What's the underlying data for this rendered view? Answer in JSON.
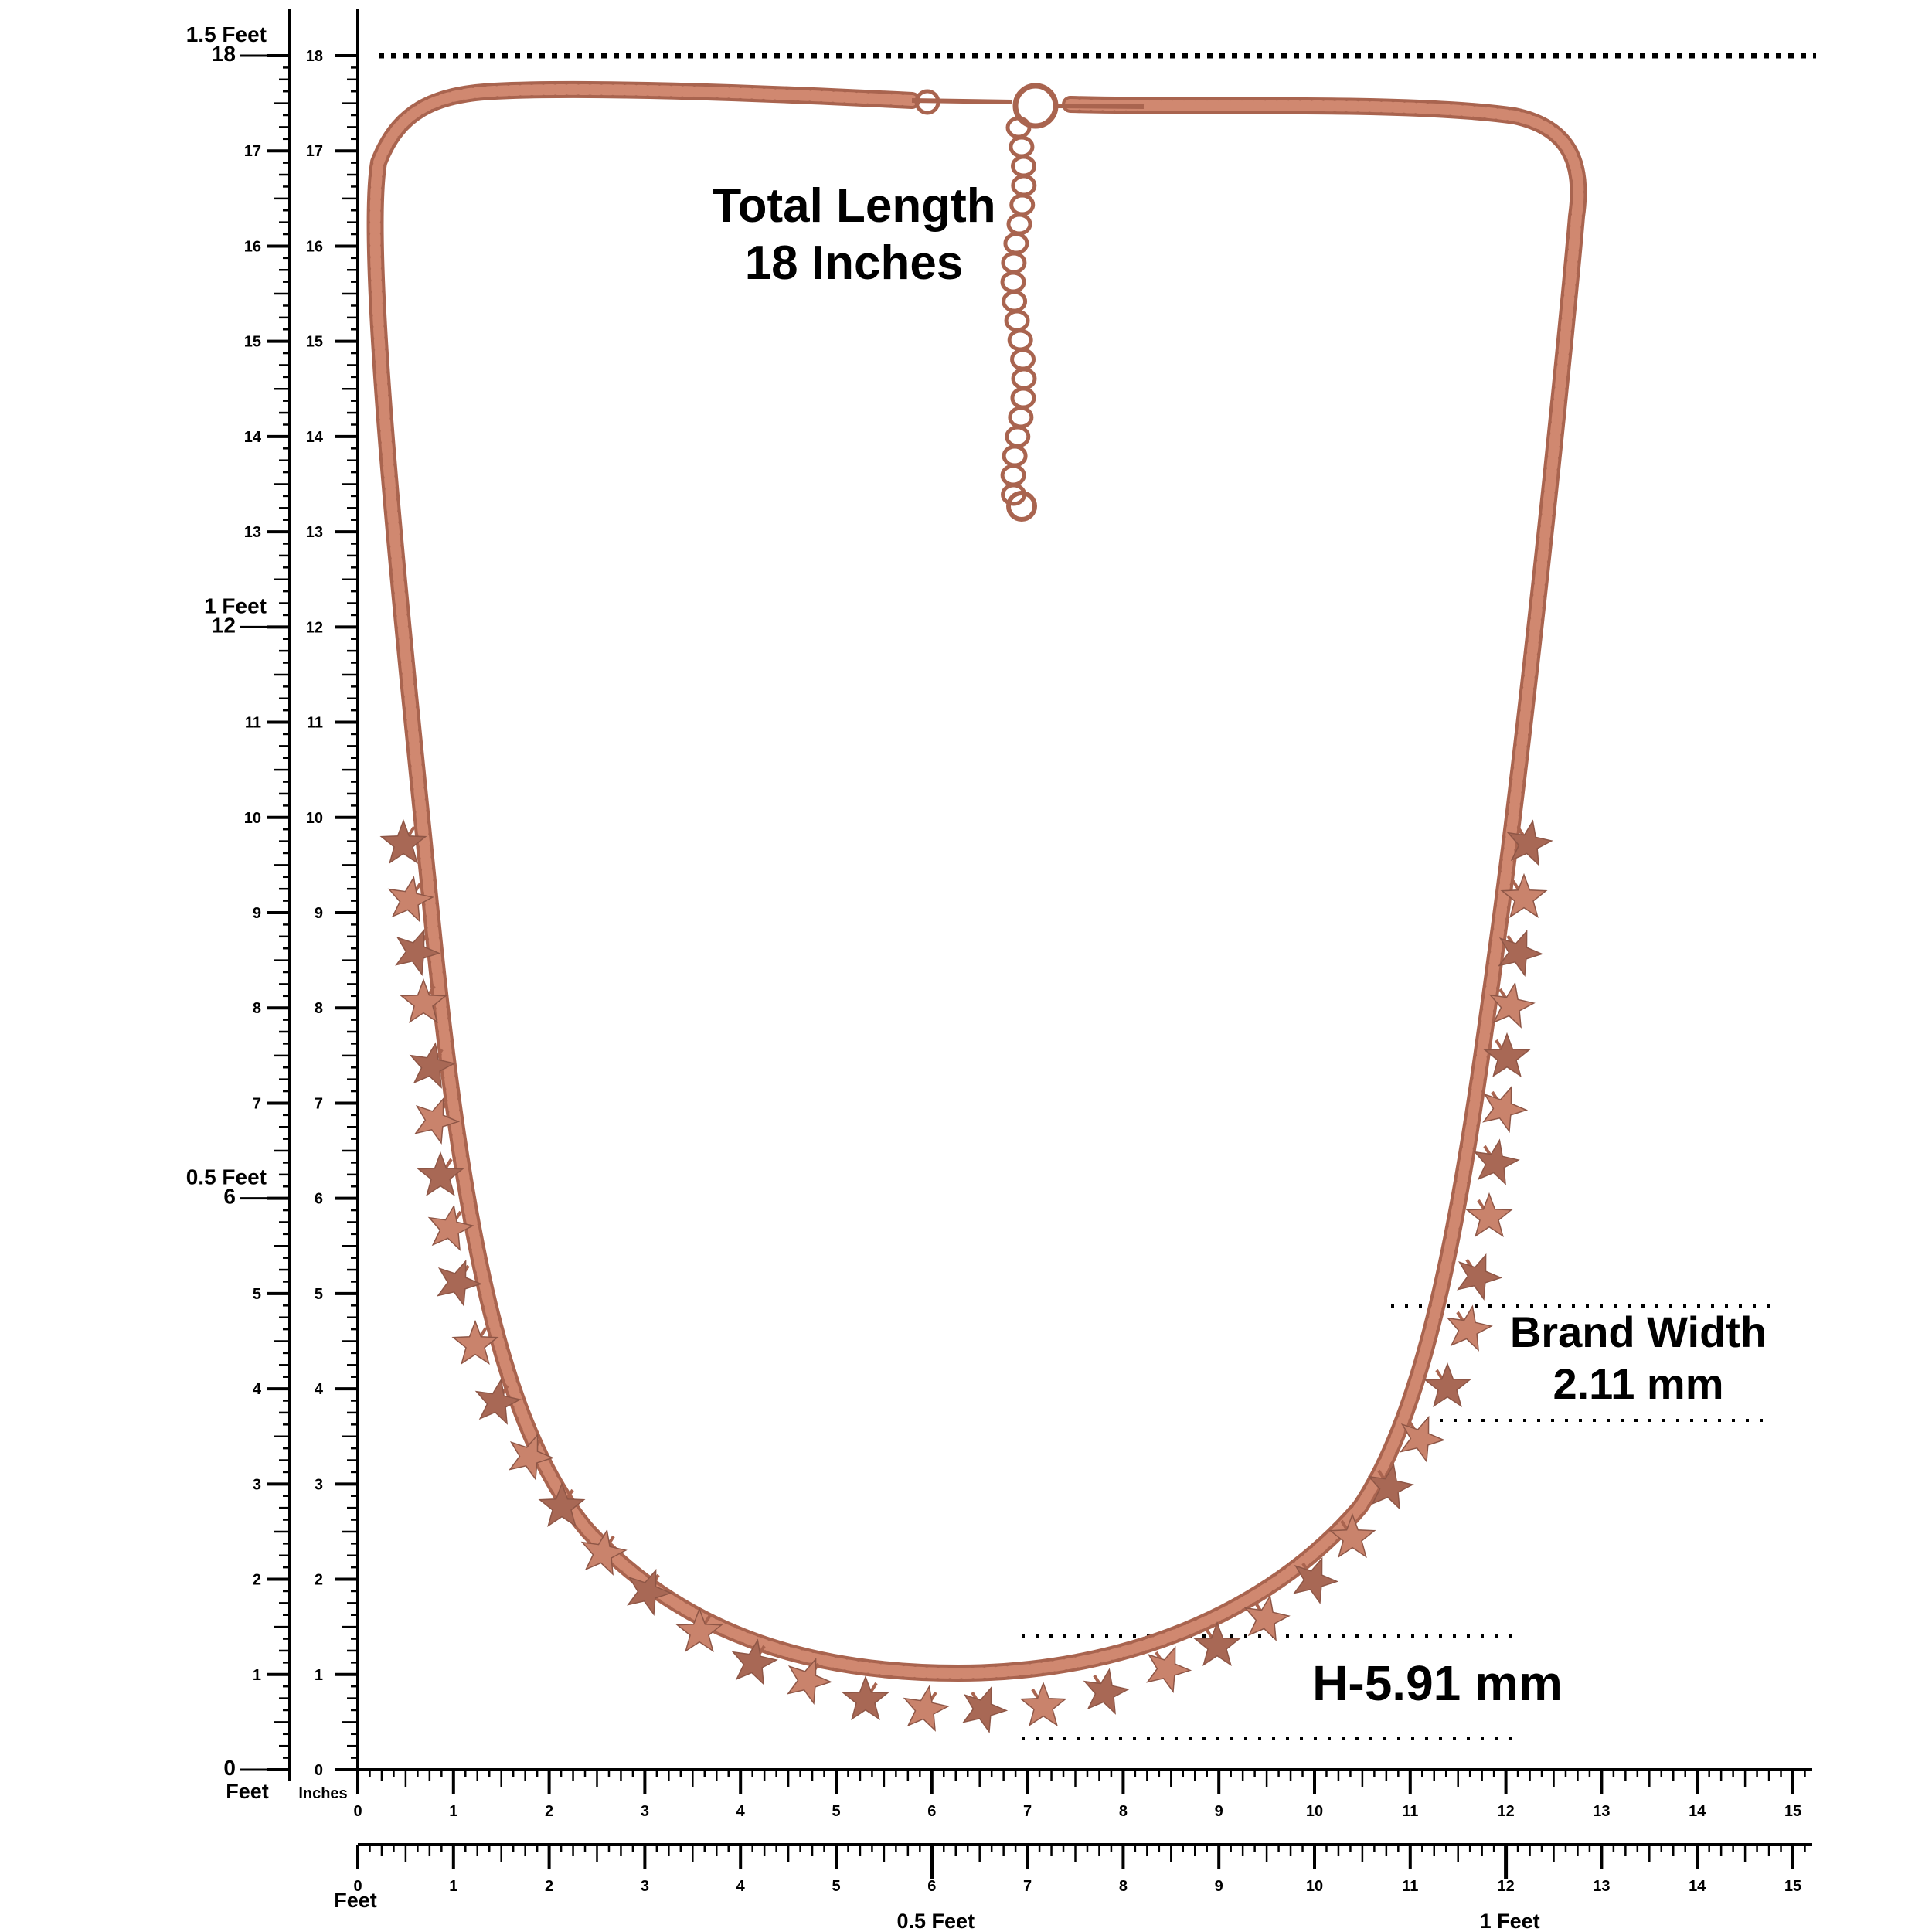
{
  "labels": {
    "total_length": [
      "Total Length",
      "18 Inches"
    ],
    "band_width": [
      "Brand Width",
      "2.11 mm"
    ],
    "height": "H-5.91 mm"
  },
  "vertical_ruler": {
    "outer_ticks": [
      "0",
      "1",
      "2",
      "3",
      "4",
      "5",
      "6",
      "7",
      "8",
      "9",
      "10",
      "11",
      "12",
      "13",
      "14",
      "15",
      "16",
      "17",
      "18"
    ],
    "inner_ticks": [
      "0",
      "1",
      "2",
      "3",
      "4",
      "5",
      "6",
      "7",
      "8",
      "9",
      "10",
      "11",
      "12",
      "13",
      "14",
      "15",
      "16",
      "17",
      "18"
    ],
    "feet_marks": [
      {
        "inch": 18,
        "label": "1.5 Feet"
      },
      {
        "inch": 12,
        "label": "1 Feet"
      },
      {
        "inch": 6,
        "label": "0.5 Feet"
      }
    ],
    "feet_label": "Feet",
    "inches_label": "Inches"
  },
  "horizontal_rulers": {
    "top_ticks": [
      "0",
      "1",
      "2",
      "3",
      "4",
      "5",
      "6",
      "7",
      "8",
      "9",
      "10",
      "11",
      "12",
      "13",
      "14",
      "15"
    ],
    "bottom_ticks": [
      "0",
      "1",
      "2",
      "3",
      "4",
      "5",
      "6",
      "7",
      "8",
      "9",
      "10",
      "11",
      "12",
      "13",
      "14",
      "15"
    ],
    "bottom_feet_label": "Feet",
    "bottom_feet_marks": [
      {
        "inch": 6,
        "label": "0.5 Feet"
      },
      {
        "inch": 12,
        "label": "1 Feet"
      }
    ]
  },
  "colors": {
    "chain": "#d08870",
    "chain_dark": "#a9644f",
    "star": "#c9836c",
    "star_dark": "#a86855",
    "ruler": "#000000"
  }
}
